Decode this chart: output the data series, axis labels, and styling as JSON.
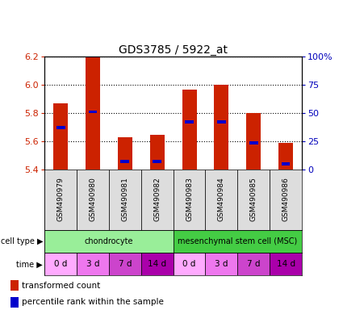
{
  "title": "GDS3785 / 5922_at",
  "samples": [
    "GSM490979",
    "GSM490980",
    "GSM490981",
    "GSM490982",
    "GSM490983",
    "GSM490984",
    "GSM490985",
    "GSM490986"
  ],
  "red_values": [
    5.87,
    6.2,
    5.63,
    5.65,
    5.97,
    6.0,
    5.8,
    5.59
  ],
  "blue_values": [
    5.7,
    5.81,
    5.46,
    5.46,
    5.74,
    5.74,
    5.59,
    5.44
  ],
  "ylim": [
    5.4,
    6.2
  ],
  "yticks_left": [
    5.4,
    5.6,
    5.8,
    6.0,
    6.2
  ],
  "yticks_right": [
    0,
    25,
    50,
    75,
    100
  ],
  "ytick_labels_right": [
    "0",
    "25",
    "50",
    "75",
    "100%"
  ],
  "cell_types": [
    {
      "label": "chondrocyte",
      "start": 0,
      "end": 4,
      "color": "#99EE99"
    },
    {
      "label": "mesenchymal stem cell (MSC)",
      "start": 4,
      "end": 8,
      "color": "#44CC44"
    }
  ],
  "time_labels": [
    "0 d",
    "3 d",
    "7 d",
    "14 d",
    "0 d",
    "3 d",
    "7 d",
    "14 d"
  ],
  "time_colors": [
    "#FFAAFF",
    "#EE77EE",
    "#CC44CC",
    "#AA00AA",
    "#FFAAFF",
    "#EE77EE",
    "#CC44CC",
    "#AA00AA"
  ],
  "bar_color": "#CC2200",
  "blue_dot_color": "#0000CC",
  "bar_width": 0.45,
  "background_color": "#FFFFFF",
  "label_color_left": "#CC2200",
  "label_color_right": "#0000BB",
  "gsm_bg_color": "#DDDDDD"
}
